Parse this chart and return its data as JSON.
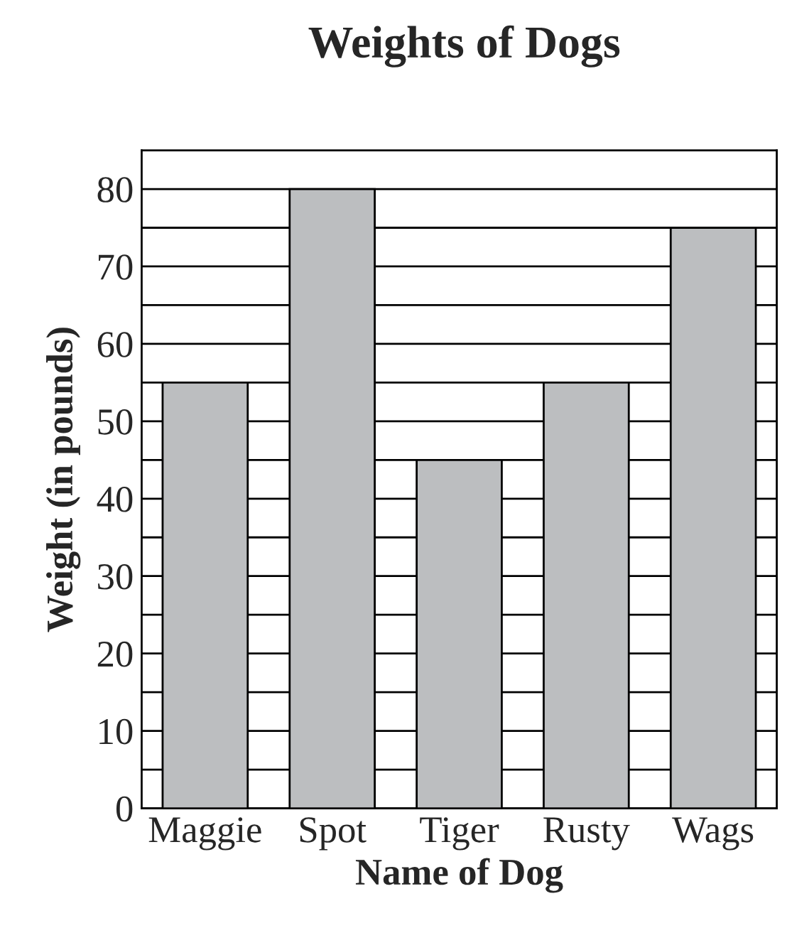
{
  "chart_data": {
    "type": "bar",
    "title": "Weights of Dogs",
    "xlabel": "Name of Dog",
    "ylabel": "Weight (in pounds)",
    "categories": [
      "Maggie",
      "Spot",
      "Tiger",
      "Rusty",
      "Wags"
    ],
    "values": [
      55,
      80,
      45,
      55,
      75
    ],
    "color": "#bcbec0",
    "ylim": [
      0,
      85
    ],
    "yticks": [
      0,
      {
        "value": 5,
        "label": null
      },
      10,
      {
        "value": 15,
        "label": null
      },
      20,
      {
        "value": 25,
        "label": null
      },
      30,
      {
        "value": 35,
        "label": null
      },
      40,
      {
        "value": 45,
        "label": null
      },
      50,
      {
        "value": 55,
        "label": null
      },
      60,
      {
        "value": 65,
        "label": null
      },
      70,
      {
        "value": 75,
        "label": null
      },
      80,
      {
        "value": 85,
        "label": null
      }
    ],
    "grid": "y"
  }
}
